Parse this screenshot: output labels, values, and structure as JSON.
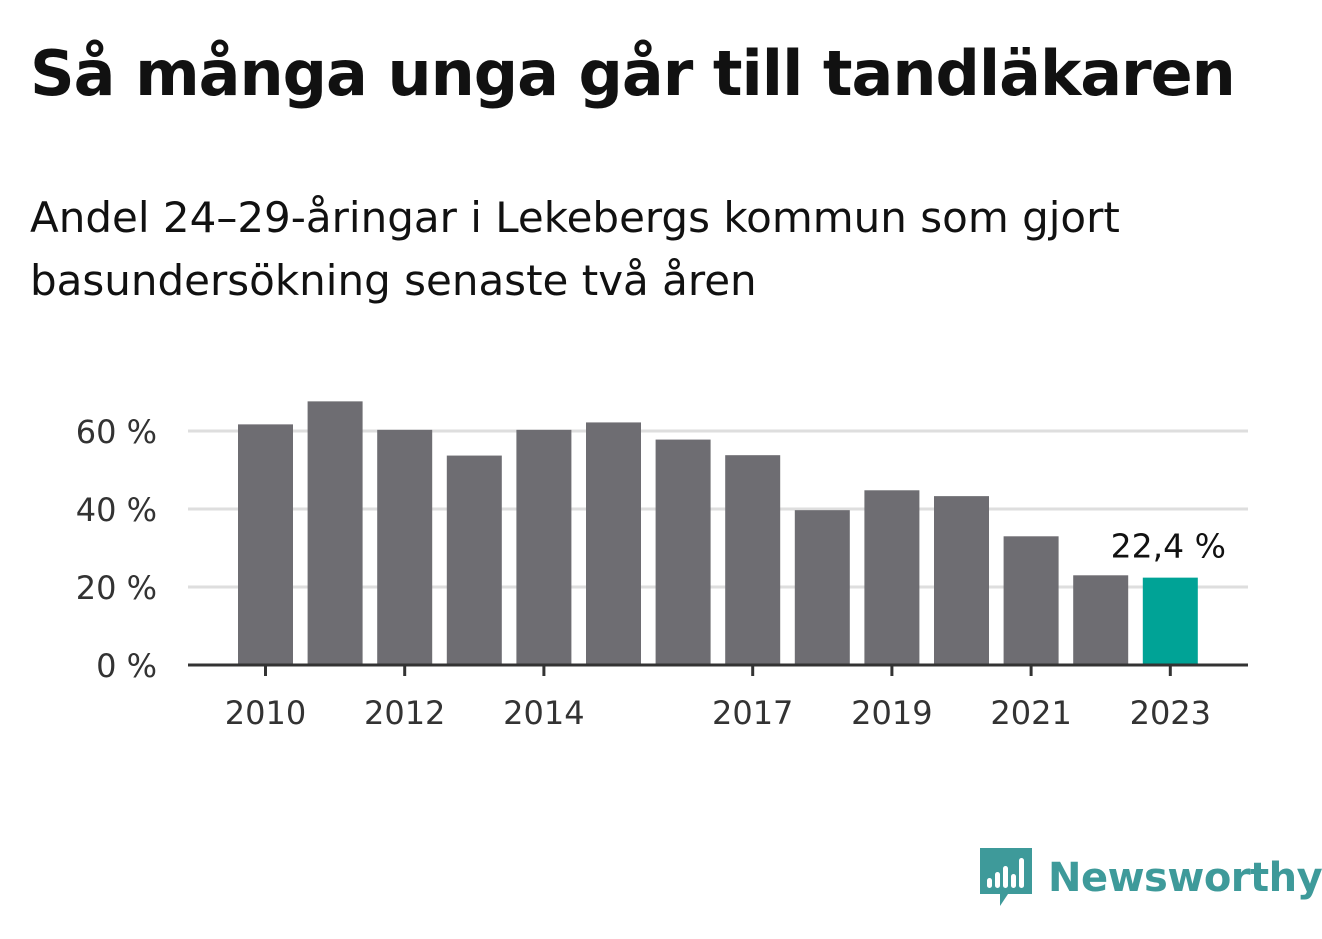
{
  "title": "Så många unga går till tandläkaren",
  "subtitle": "Andel 24–29-åringar i Lekebergs kommun som gjort basundersökning senaste två åren",
  "brand": {
    "name": "Newsworthy",
    "logo_icon": "newsworthy-bars-logo",
    "color": "#3e9a9a"
  },
  "chart_data": {
    "type": "bar",
    "categories": [
      "2010",
      "2011",
      "2012",
      "2013",
      "2014",
      "2015",
      "2016",
      "2017",
      "2018",
      "2019",
      "2020",
      "2021",
      "2022",
      "2023"
    ],
    "values": [
      61.7,
      67.6,
      60.3,
      53.7,
      60.3,
      62.2,
      57.8,
      53.8,
      39.7,
      44.8,
      43.3,
      33.0,
      23.0,
      22.4
    ],
    "tick_labels_x": [
      "2010",
      "2012",
      "2014",
      "2017",
      "2019",
      "2021",
      "2023"
    ],
    "tick_labels_y": [
      "0 %",
      "20 %",
      "40 %",
      "60 %"
    ],
    "y_ticks": [
      0,
      20,
      40,
      60
    ],
    "ylim": [
      0,
      70
    ],
    "grid": true,
    "bar_color": "#6e6d72",
    "highlight_color": "#00a396",
    "highlight_index": 13,
    "annotation": "22,4 %",
    "xlabel": "",
    "ylabel": ""
  }
}
